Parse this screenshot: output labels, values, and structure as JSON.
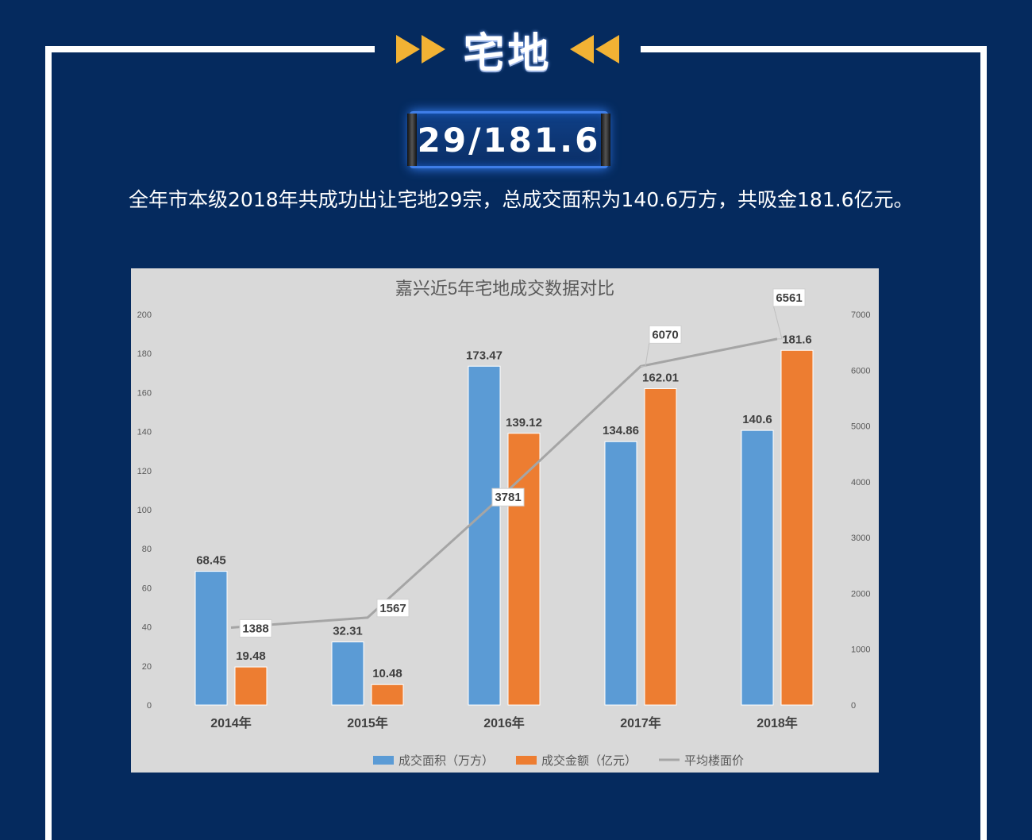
{
  "header": {
    "title": "宅地"
  },
  "highlight": {
    "text": "29/181.6"
  },
  "summary": {
    "text": "全年市本级2018年共成功出让宅地29宗，总成交面积为140.6万方，共吸金181.6亿元。"
  },
  "colors": {
    "background": "#052a5e",
    "accent": "#f2b234",
    "area": "#5b9bd5",
    "amount": "#ed7d31",
    "price": "#a5a5a5",
    "chart_bg": "#d9d9d9"
  },
  "chart_data": {
    "type": "bar",
    "title": "嘉兴近5年宅地成交数据对比",
    "categories": [
      "2014年",
      "2015年",
      "2016年",
      "2017年",
      "2018年"
    ],
    "series": [
      {
        "name": "成交面积（万方）",
        "type": "bar",
        "axis": "left",
        "color": "#5b9bd5",
        "values": [
          68.45,
          32.31,
          173.47,
          134.86,
          140.6
        ]
      },
      {
        "name": "成交金额（亿元）",
        "type": "bar",
        "axis": "left",
        "color": "#ed7d31",
        "values": [
          19.48,
          10.48,
          139.12,
          162.01,
          181.6
        ]
      },
      {
        "name": "平均楼面价",
        "type": "line",
        "axis": "right",
        "color": "#a5a5a5",
        "values": [
          1388,
          1567,
          3781,
          6070,
          6561
        ]
      }
    ],
    "ylim_left": [
      0,
      200
    ],
    "yticks_left": [
      0,
      20,
      40,
      60,
      80,
      100,
      120,
      140,
      160,
      180,
      200
    ],
    "ylim_right": [
      0,
      7000
    ],
    "yticks_right": [
      0,
      1000,
      2000,
      3000,
      4000,
      5000,
      6000,
      7000
    ],
    "grid": false,
    "legend": "bottom"
  }
}
